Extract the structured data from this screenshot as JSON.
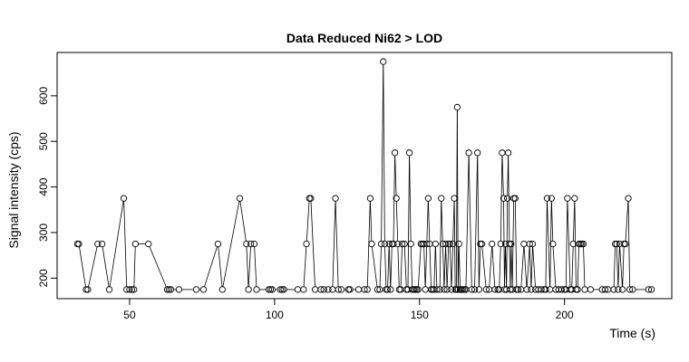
{
  "chart_data": {
    "type": "scatter",
    "title": "Data Reduced Ni62 > LOD",
    "xlabel": "Time (s)",
    "ylabel": "Signal intensity (cps)",
    "xlim": [
      25,
      237
    ],
    "ylim": [
      155,
      695
    ],
    "xticks": [
      50,
      100,
      150,
      200
    ],
    "yticks": [
      200,
      300,
      400,
      500,
      600
    ],
    "grid": false,
    "legend": "none",
    "marker": "open-circle",
    "connected_points": true,
    "color": "#000000",
    "points": [
      [
        32.0,
        275
      ],
      [
        32.5,
        275
      ],
      [
        35.0,
        175
      ],
      [
        35.6,
        175
      ],
      [
        39.0,
        275
      ],
      [
        40.5,
        275
      ],
      [
        43.0,
        175
      ],
      [
        48.0,
        375
      ],
      [
        49.0,
        175
      ],
      [
        50.0,
        175
      ],
      [
        50.8,
        175
      ],
      [
        51.5,
        175
      ],
      [
        52.0,
        275
      ],
      [
        56.5,
        275
      ],
      [
        63.0,
        175
      ],
      [
        63.6,
        175
      ],
      [
        64.2,
        175
      ],
      [
        67.0,
        175
      ],
      [
        73.0,
        175
      ],
      [
        75.5,
        175
      ],
      [
        80.5,
        275
      ],
      [
        82.0,
        175
      ],
      [
        88.0,
        375
      ],
      [
        90.3,
        275
      ],
      [
        91.0,
        175
      ],
      [
        91.8,
        275
      ],
      [
        93.0,
        275
      ],
      [
        93.8,
        175
      ],
      [
        98.0,
        175
      ],
      [
        98.6,
        175
      ],
      [
        99.2,
        175
      ],
      [
        102.0,
        175
      ],
      [
        102.6,
        175
      ],
      [
        103.2,
        175
      ],
      [
        108.0,
        175
      ],
      [
        110.0,
        175
      ],
      [
        111.0,
        275
      ],
      [
        112.0,
        375
      ],
      [
        112.5,
        375
      ],
      [
        114.0,
        175
      ],
      [
        116.0,
        175
      ],
      [
        117.0,
        175
      ],
      [
        118.5,
        175
      ],
      [
        120.0,
        175
      ],
      [
        121.0,
        375
      ],
      [
        122.0,
        175
      ],
      [
        123.0,
        175
      ],
      [
        125.5,
        175
      ],
      [
        126.0,
        175
      ],
      [
        129.0,
        175
      ],
      [
        131.0,
        175
      ],
      [
        132.0,
        175
      ],
      [
        133.0,
        375
      ],
      [
        133.5,
        275
      ],
      [
        135.5,
        175
      ],
      [
        136.3,
        175
      ],
      [
        136.8,
        275
      ],
      [
        137.5,
        675
      ],
      [
        138.0,
        275
      ],
      [
        138.5,
        175
      ],
      [
        139.0,
        175
      ],
      [
        139.5,
        275
      ],
      [
        140.0,
        175
      ],
      [
        140.5,
        275
      ],
      [
        141.0,
        275
      ],
      [
        141.5,
        475
      ],
      [
        142.0,
        375
      ],
      [
        142.5,
        275
      ],
      [
        143.0,
        175
      ],
      [
        143.5,
        175
      ],
      [
        144.0,
        275
      ],
      [
        144.8,
        275
      ],
      [
        145.5,
        175
      ],
      [
        146.0,
        175
      ],
      [
        146.5,
        475
      ],
      [
        147.0,
        275
      ],
      [
        147.5,
        175
      ],
      [
        148.0,
        175
      ],
      [
        148.5,
        175
      ],
      [
        149.0,
        175
      ],
      [
        149.5,
        175
      ],
      [
        150.5,
        275
      ],
      [
        151.0,
        275
      ],
      [
        151.5,
        275
      ],
      [
        152.0,
        175
      ],
      [
        152.5,
        275
      ],
      [
        153.0,
        375
      ],
      [
        153.5,
        275
      ],
      [
        154.0,
        175
      ],
      [
        154.5,
        175
      ],
      [
        155.0,
        175
      ],
      [
        155.5,
        275
      ],
      [
        156.0,
        175
      ],
      [
        157.0,
        175
      ],
      [
        157.5,
        375
      ],
      [
        158.0,
        275
      ],
      [
        158.5,
        175
      ],
      [
        159.0,
        275
      ],
      [
        159.5,
        175
      ],
      [
        160.0,
        275
      ],
      [
        160.5,
        275
      ],
      [
        161.0,
        175
      ],
      [
        161.5,
        275
      ],
      [
        162.0,
        375
      ],
      [
        162.3,
        175
      ],
      [
        162.7,
        175
      ],
      [
        163.0,
        575
      ],
      [
        163.3,
        175
      ],
      [
        163.6,
        275
      ],
      [
        164.0,
        175
      ],
      [
        164.5,
        175
      ],
      [
        165.0,
        175
      ],
      [
        165.5,
        175
      ],
      [
        166.0,
        175
      ],
      [
        167.0,
        475
      ],
      [
        168.0,
        175
      ],
      [
        169.0,
        175
      ],
      [
        170.0,
        475
      ],
      [
        170.5,
        175
      ],
      [
        171.0,
        275
      ],
      [
        171.5,
        275
      ],
      [
        173.0,
        175
      ],
      [
        174.0,
        175
      ],
      [
        175.0,
        275
      ],
      [
        176.0,
        175
      ],
      [
        177.0,
        175
      ],
      [
        177.5,
        175
      ],
      [
        178.0,
        275
      ],
      [
        178.5,
        475
      ],
      [
        179.0,
        375
      ],
      [
        179.3,
        175
      ],
      [
        179.6,
        275
      ],
      [
        180.0,
        175
      ],
      [
        180.3,
        375
      ],
      [
        180.6,
        475
      ],
      [
        181.0,
        275
      ],
      [
        181.3,
        175
      ],
      [
        181.6,
        275
      ],
      [
        182.0,
        175
      ],
      [
        182.5,
        375
      ],
      [
        183.0,
        375
      ],
      [
        183.5,
        175
      ],
      [
        184.0,
        175
      ],
      [
        185.0,
        175
      ],
      [
        186.0,
        275
      ],
      [
        187.0,
        175
      ],
      [
        188.0,
        275
      ],
      [
        188.5,
        175
      ],
      [
        189.0,
        275
      ],
      [
        190.0,
        175
      ],
      [
        191.0,
        175
      ],
      [
        192.0,
        175
      ],
      [
        193.0,
        175
      ],
      [
        193.5,
        175
      ],
      [
        194.0,
        375
      ],
      [
        195.0,
        175
      ],
      [
        195.5,
        375
      ],
      [
        196.0,
        275
      ],
      [
        197.0,
        175
      ],
      [
        198.0,
        175
      ],
      [
        199.0,
        175
      ],
      [
        200.0,
        175
      ],
      [
        200.5,
        175
      ],
      [
        201.0,
        375
      ],
      [
        202.0,
        175
      ],
      [
        202.5,
        175
      ],
      [
        203.0,
        275
      ],
      [
        203.5,
        375
      ],
      [
        204.0,
        175
      ],
      [
        204.5,
        175
      ],
      [
        205.0,
        275
      ],
      [
        205.5,
        275
      ],
      [
        206.0,
        275
      ],
      [
        206.5,
        275
      ],
      [
        207.0,
        175
      ],
      [
        209.0,
        175
      ],
      [
        213.0,
        175
      ],
      [
        214.0,
        175
      ],
      [
        215.0,
        175
      ],
      [
        217.0,
        175
      ],
      [
        217.5,
        275
      ],
      [
        218.0,
        275
      ],
      [
        218.5,
        175
      ],
      [
        219.0,
        275
      ],
      [
        220.0,
        175
      ],
      [
        220.5,
        275
      ],
      [
        221.0,
        275
      ],
      [
        222.0,
        375
      ],
      [
        222.5,
        175
      ],
      [
        223.5,
        175
      ],
      [
        229.0,
        175
      ],
      [
        230.0,
        175
      ]
    ]
  }
}
